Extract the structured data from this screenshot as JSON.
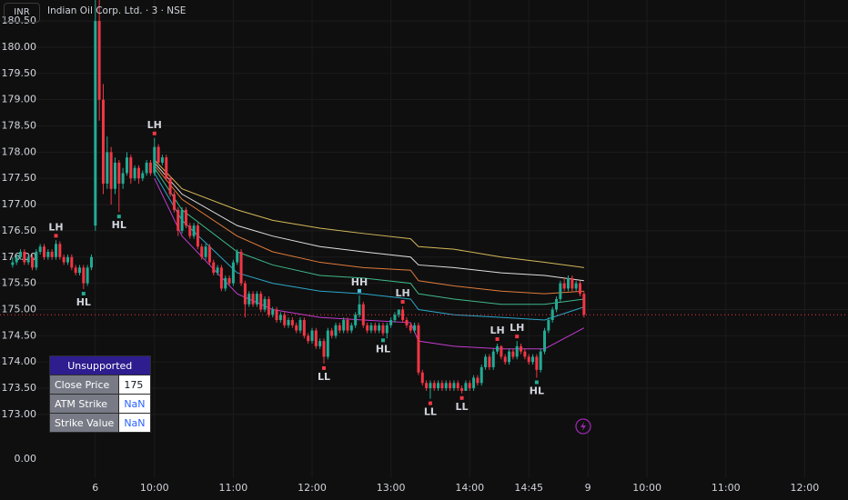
{
  "chart_data": {
    "type": "candlestick",
    "currency": "INR",
    "title": "Indian Oil Corp. Ltd. · 3 · NSE",
    "up_color": "#22ab94",
    "down_color": "#f23645",
    "grid": true,
    "xlim": [
      -24.2,
      191
    ],
    "ylim": [
      172.6,
      180.9
    ],
    "yticks": [
      {
        "value": 173,
        "label": "173.00"
      },
      {
        "value": 173.5,
        "label": "173.50"
      },
      {
        "value": 174,
        "label": "174.00"
      },
      {
        "value": 174.5,
        "label": "174.50"
      },
      {
        "value": 175,
        "label": "175.00"
      },
      {
        "value": 175.5,
        "label": "175.50"
      },
      {
        "value": 176,
        "label": "176.00"
      },
      {
        "value": 176.5,
        "label": "176.50"
      },
      {
        "value": 177,
        "label": "177.00"
      },
      {
        "value": 177.5,
        "label": "177.50"
      },
      {
        "value": 178,
        "label": "178.00"
      },
      {
        "value": 178.5,
        "label": "178.50"
      },
      {
        "value": 179,
        "label": "179.00"
      },
      {
        "value": 179.5,
        "label": "179.50"
      },
      {
        "value": 180,
        "label": "180.00"
      },
      {
        "value": 180.5,
        "label": "180.50"
      }
    ],
    "xticks": [
      {
        "value": 0,
        "label": "6"
      },
      {
        "value": 15,
        "label": "10:00"
      },
      {
        "value": 35,
        "label": "11:00"
      },
      {
        "value": 55,
        "label": "12:00"
      },
      {
        "value": 75,
        "label": "13:00"
      },
      {
        "value": 95,
        "label": "14:00"
      },
      {
        "value": 110,
        "label": "14:45"
      },
      {
        "value": 125,
        "label": "9"
      },
      {
        "value": 140,
        "label": "10:00"
      },
      {
        "value": 160,
        "label": "11:00"
      },
      {
        "value": 180,
        "label": "12:00"
      }
    ],
    "x": [
      -21,
      -20,
      -19,
      -18,
      -17,
      -16,
      -15,
      -14,
      -13,
      -12,
      -11,
      -10,
      -9,
      -8,
      -7,
      -6,
      -5,
      -4,
      -3,
      -2,
      -1,
      0,
      1,
      2,
      3,
      4,
      5,
      6,
      7,
      8,
      9,
      10,
      11,
      12,
      13,
      14,
      15,
      16,
      17,
      18,
      19,
      20,
      21,
      22,
      23,
      24,
      25,
      26,
      27,
      28,
      29,
      30,
      31,
      32,
      33,
      34,
      35,
      36,
      37,
      38,
      39,
      40,
      41,
      42,
      43,
      44,
      45,
      46,
      47,
      48,
      49,
      50,
      51,
      52,
      53,
      54,
      55,
      56,
      57,
      58,
      59,
      60,
      61,
      62,
      63,
      64,
      65,
      66,
      67,
      68,
      69,
      70,
      71,
      72,
      73,
      74,
      75,
      76,
      77,
      78,
      79,
      80,
      81,
      82,
      83,
      84,
      85,
      86,
      87,
      88,
      89,
      90,
      91,
      92,
      93,
      94,
      95,
      96,
      97,
      98,
      99,
      100,
      101,
      102,
      103,
      104,
      105,
      106,
      107,
      108,
      109,
      110,
      111,
      112,
      113,
      114,
      115,
      116,
      117,
      118,
      119,
      120,
      121,
      122,
      123,
      124
    ],
    "ohlc": [
      [
        175.85,
        176.0,
        175.8,
        175.9
      ],
      [
        175.9,
        176.05,
        175.85,
        176.0
      ],
      [
        176.0,
        176.15,
        175.95,
        176.1
      ],
      [
        176.1,
        176.15,
        175.85,
        175.9
      ],
      [
        175.9,
        176.05,
        175.85,
        176.0
      ],
      [
        176.0,
        176.05,
        175.75,
        175.8
      ],
      [
        175.8,
        176.15,
        175.75,
        176.1
      ],
      [
        176.1,
        176.25,
        176.05,
        176.2
      ],
      [
        176.2,
        176.25,
        175.95,
        176.0
      ],
      [
        176.0,
        176.15,
        175.95,
        176.1
      ],
      [
        176.1,
        176.15,
        175.95,
        176.0
      ],
      [
        176.0,
        176.32,
        175.95,
        176.25
      ],
      [
        176.25,
        176.3,
        175.95,
        176.0
      ],
      [
        176.0,
        176.05,
        175.85,
        175.9
      ],
      [
        175.9,
        176.05,
        175.85,
        176.0
      ],
      [
        176.0,
        176.05,
        175.75,
        175.8
      ],
      [
        175.8,
        175.85,
        175.65,
        175.7
      ],
      [
        175.7,
        175.85,
        175.65,
        175.8
      ],
      [
        175.8,
        175.85,
        175.39,
        175.5
      ],
      [
        175.5,
        175.85,
        175.45,
        175.8
      ],
      [
        175.8,
        176.05,
        175.75,
        176.0
      ],
      [
        176.6,
        180.9,
        176.5,
        180.5
      ],
      [
        180.5,
        180.9,
        178.6,
        179.0
      ],
      [
        179.0,
        179.3,
        177.2,
        177.4
      ],
      [
        177.4,
        178.3,
        177.3,
        178.0
      ],
      [
        178.0,
        178.1,
        177.0,
        177.3
      ],
      [
        177.3,
        177.9,
        177.2,
        177.8
      ],
      [
        177.8,
        177.85,
        176.86,
        177.4
      ],
      [
        177.4,
        177.7,
        177.3,
        177.6
      ],
      [
        177.6,
        178.0,
        177.55,
        177.9
      ],
      [
        177.9,
        177.95,
        177.4,
        177.5
      ],
      [
        177.5,
        177.75,
        177.45,
        177.7
      ],
      [
        177.7,
        177.75,
        177.4,
        177.5
      ],
      [
        177.5,
        177.65,
        177.45,
        177.6
      ],
      [
        177.6,
        177.85,
        177.55,
        177.8
      ],
      [
        177.8,
        177.85,
        177.55,
        177.6
      ],
      [
        177.6,
        178.27,
        177.55,
        178.1
      ],
      [
        178.1,
        178.15,
        177.75,
        177.8
      ],
      [
        177.8,
        177.95,
        177.75,
        177.9
      ],
      [
        177.9,
        177.95,
        177.45,
        177.5
      ],
      [
        177.5,
        177.55,
        177.15,
        177.2
      ],
      [
        177.2,
        177.25,
        176.85,
        176.9
      ],
      [
        176.9,
        176.95,
        176.4,
        176.5
      ],
      [
        176.5,
        176.95,
        176.45,
        176.9
      ],
      [
        176.9,
        176.95,
        176.55,
        176.6
      ],
      [
        176.6,
        176.65,
        176.35,
        176.4
      ],
      [
        176.4,
        176.65,
        176.35,
        176.6
      ],
      [
        176.6,
        176.65,
        176.15,
        176.2
      ],
      [
        176.2,
        176.25,
        175.95,
        176.0
      ],
      [
        176.0,
        176.25,
        175.95,
        176.2
      ],
      [
        176.2,
        176.25,
        175.85,
        175.9
      ],
      [
        175.9,
        175.95,
        175.65,
        175.7
      ],
      [
        175.7,
        175.85,
        175.65,
        175.8
      ],
      [
        175.8,
        175.85,
        175.35,
        175.4
      ],
      [
        175.4,
        175.65,
        175.35,
        175.6
      ],
      [
        175.6,
        175.65,
        175.45,
        175.5
      ],
      [
        175.5,
        175.95,
        175.45,
        175.9
      ],
      [
        175.9,
        176.15,
        175.85,
        176.1
      ],
      [
        176.1,
        176.15,
        175.45,
        175.5
      ],
      [
        175.5,
        175.55,
        174.85,
        175.1
      ],
      [
        175.1,
        175.35,
        175.05,
        175.3
      ],
      [
        175.3,
        175.35,
        175.05,
        175.1
      ],
      [
        175.1,
        175.35,
        175.05,
        175.3
      ],
      [
        175.3,
        175.35,
        174.95,
        175.0
      ],
      [
        175.0,
        175.25,
        174.95,
        175.2
      ],
      [
        175.2,
        175.25,
        174.85,
        174.9
      ],
      [
        174.9,
        175.05,
        174.85,
        175.0
      ],
      [
        175.0,
        175.05,
        174.75,
        174.8
      ],
      [
        174.8,
        174.95,
        174.75,
        174.9
      ],
      [
        174.9,
        174.95,
        174.65,
        174.7
      ],
      [
        174.7,
        174.85,
        174.65,
        174.8
      ],
      [
        174.8,
        174.85,
        174.65,
        174.7
      ],
      [
        174.7,
        174.75,
        174.55,
        174.6
      ],
      [
        174.6,
        174.85,
        174.55,
        174.8
      ],
      [
        174.8,
        174.85,
        174.45,
        174.5
      ],
      [
        174.5,
        174.55,
        174.35,
        174.4
      ],
      [
        174.4,
        174.65,
        174.35,
        174.6
      ],
      [
        174.6,
        174.65,
        174.25,
        174.3
      ],
      [
        174.3,
        174.45,
        174.25,
        174.4
      ],
      [
        174.4,
        174.45,
        173.97,
        174.1
      ],
      [
        174.1,
        174.65,
        174.05,
        174.6
      ],
      [
        174.6,
        174.65,
        174.45,
        174.5
      ],
      [
        174.5,
        174.75,
        174.45,
        174.7
      ],
      [
        174.7,
        174.75,
        174.55,
        174.6
      ],
      [
        174.6,
        174.85,
        174.55,
        174.8
      ],
      [
        174.8,
        174.85,
        174.55,
        174.6
      ],
      [
        174.6,
        174.75,
        174.55,
        174.7
      ],
      [
        174.7,
        174.95,
        174.65,
        174.9
      ],
      [
        174.9,
        175.27,
        174.85,
        175.1
      ],
      [
        175.1,
        175.15,
        174.65,
        174.7
      ],
      [
        174.7,
        174.75,
        174.55,
        174.6
      ],
      [
        174.6,
        174.75,
        174.55,
        174.7
      ],
      [
        174.7,
        174.75,
        174.55,
        174.6
      ],
      [
        174.6,
        174.75,
        174.55,
        174.7
      ],
      [
        174.7,
        174.75,
        174.5,
        174.55
      ],
      [
        174.55,
        174.75,
        174.45,
        174.7
      ],
      [
        174.7,
        174.85,
        174.65,
        174.8
      ],
      [
        174.8,
        174.95,
        174.75,
        174.9
      ],
      [
        174.9,
        175.0,
        174.85,
        175.0
      ],
      [
        175.0,
        175.06,
        174.75,
        174.8
      ],
      [
        174.8,
        174.85,
        174.65,
        174.7
      ],
      [
        174.7,
        174.75,
        174.55,
        174.6
      ],
      [
        174.6,
        174.75,
        174.55,
        174.7
      ],
      [
        174.7,
        174.75,
        173.75,
        173.8
      ],
      [
        173.8,
        173.85,
        173.55,
        173.6
      ],
      [
        173.6,
        173.65,
        173.45,
        173.5
      ],
      [
        173.5,
        173.65,
        173.3,
        173.6
      ],
      [
        173.6,
        173.65,
        173.45,
        173.5
      ],
      [
        173.5,
        173.65,
        173.45,
        173.6
      ],
      [
        173.6,
        173.65,
        173.45,
        173.5
      ],
      [
        173.5,
        173.65,
        173.45,
        173.6
      ],
      [
        173.6,
        173.65,
        173.45,
        173.5
      ],
      [
        173.5,
        173.65,
        173.45,
        173.6
      ],
      [
        173.6,
        173.65,
        173.45,
        173.5
      ],
      [
        173.5,
        173.55,
        173.4,
        173.45
      ],
      [
        173.45,
        173.65,
        173.45,
        173.6
      ],
      [
        173.6,
        173.65,
        173.45,
        173.5
      ],
      [
        173.5,
        173.75,
        173.45,
        173.7
      ],
      [
        173.7,
        173.75,
        173.55,
        173.6
      ],
      [
        173.6,
        173.95,
        173.55,
        173.9
      ],
      [
        173.9,
        174.15,
        173.85,
        174.1
      ],
      [
        174.1,
        174.15,
        173.85,
        173.9
      ],
      [
        173.9,
        174.25,
        173.85,
        174.2
      ],
      [
        174.2,
        174.35,
        174.15,
        174.3
      ],
      [
        174.3,
        174.32,
        174.05,
        174.1
      ],
      [
        174.1,
        174.15,
        173.95,
        174.0
      ],
      [
        174.0,
        174.25,
        173.95,
        174.2
      ],
      [
        174.2,
        174.25,
        174.05,
        174.1
      ],
      [
        174.1,
        174.4,
        174.05,
        174.3
      ],
      [
        174.3,
        174.35,
        174.15,
        174.2
      ],
      [
        174.2,
        174.25,
        174.05,
        174.1
      ],
      [
        174.1,
        174.15,
        173.95,
        174.0
      ],
      [
        174.0,
        174.15,
        173.95,
        174.1
      ],
      [
        174.1,
        174.15,
        173.7,
        173.85
      ],
      [
        173.85,
        174.25,
        173.8,
        174.2
      ],
      [
        174.2,
        174.65,
        174.15,
        174.6
      ],
      [
        174.6,
        174.85,
        174.55,
        174.8
      ],
      [
        174.8,
        175.05,
        174.75,
        175.0
      ],
      [
        175.0,
        175.25,
        174.95,
        175.2
      ],
      [
        175.2,
        175.55,
        175.15,
        175.5
      ],
      [
        175.5,
        175.6,
        175.35,
        175.4
      ],
      [
        175.4,
        175.65,
        175.35,
        175.6
      ],
      [
        175.6,
        175.65,
        175.35,
        175.4
      ],
      [
        175.4,
        175.55,
        175.35,
        175.5
      ],
      [
        175.5,
        175.55,
        175.25,
        175.3
      ],
      [
        175.3,
        175.35,
        174.85,
        174.9
      ]
    ],
    "series": [
      {
        "color": "#d4b85a",
        "x": [
          15,
          22,
          36,
          45,
          57,
          68,
          80,
          82,
          91,
          103,
          114,
          124
        ],
        "values": [
          177.85,
          177.3,
          176.9,
          176.7,
          176.55,
          176.45,
          176.35,
          176.2,
          176.15,
          176.0,
          175.9,
          175.8
        ]
      },
      {
        "color": "#e0e0e0",
        "x": [
          15,
          22,
          36,
          45,
          57,
          68,
          80,
          82,
          91,
          103,
          114,
          124
        ],
        "values": [
          177.8,
          177.2,
          176.6,
          176.4,
          176.2,
          176.1,
          176.0,
          175.85,
          175.8,
          175.7,
          175.65,
          175.55
        ]
      },
      {
        "color": "#e07b3c",
        "x": [
          15,
          22,
          36,
          45,
          57,
          68,
          80,
          82,
          91,
          103,
          114,
          124
        ],
        "values": [
          177.75,
          177.1,
          176.4,
          176.1,
          175.9,
          175.8,
          175.75,
          175.55,
          175.45,
          175.35,
          175.3,
          175.35
        ]
      },
      {
        "color": "#3fb88a",
        "x": [
          15,
          22,
          36,
          45,
          57,
          68,
          80,
          82,
          91,
          103,
          114,
          124
        ],
        "values": [
          177.7,
          176.9,
          176.1,
          175.85,
          175.65,
          175.6,
          175.5,
          175.3,
          175.2,
          175.1,
          175.1,
          175.2
        ]
      },
      {
        "color": "#2aa6c9",
        "x": [
          15,
          22,
          36,
          45,
          57,
          68,
          80,
          82,
          91,
          103,
          114,
          124
        ],
        "values": [
          177.6,
          176.7,
          175.7,
          175.5,
          175.35,
          175.3,
          175.2,
          175.0,
          174.9,
          174.85,
          174.8,
          175.05
        ]
      },
      {
        "color": "#c23ccf",
        "x": [
          15,
          22,
          36,
          45,
          57,
          68,
          80,
          82,
          91,
          103,
          114,
          124
        ],
        "values": [
          177.5,
          176.4,
          175.3,
          175.0,
          174.85,
          174.8,
          174.75,
          174.4,
          174.3,
          174.25,
          174.25,
          174.65
        ]
      }
    ],
    "annotations": [
      {
        "text": "LH",
        "x": -10,
        "y": 176.32,
        "color": "#f23645"
      },
      {
        "text": "HL",
        "x": -3,
        "y": 175.39,
        "color": "#22ab94"
      },
      {
        "text": "HL",
        "x": 6,
        "y": 176.86,
        "color": "#22ab94"
      },
      {
        "text": "LH",
        "x": 15,
        "y": 178.27,
        "color": "#f23645"
      },
      {
        "text": "LL",
        "x": 58,
        "y": 173.97,
        "color": "#f23645"
      },
      {
        "text": "HH",
        "x": 67,
        "y": 175.27,
        "color": "#4fc3d9"
      },
      {
        "text": "HL",
        "x": 73,
        "y": 174.5,
        "color": "#22ab94"
      },
      {
        "text": "LH",
        "x": 78,
        "y": 175.06,
        "color": "#f23645"
      },
      {
        "text": "LL",
        "x": 85,
        "y": 173.3,
        "color": "#f23645"
      },
      {
        "text": "LL",
        "x": 93,
        "y": 173.4,
        "color": "#f23645"
      },
      {
        "text": "LH",
        "x": 102,
        "y": 174.35,
        "color": "#f23645"
      },
      {
        "text": "LH",
        "x": 107,
        "y": 174.4,
        "color": "#f23645"
      },
      {
        "text": "HL",
        "x": 112,
        "y": 173.7,
        "color": "#22ab94"
      }
    ],
    "last_price": 174.9,
    "indicator_axis_label": "0.00"
  },
  "table": {
    "title": "Unsupported",
    "rows": [
      [
        "Close Price",
        "175"
      ],
      [
        "ATM Strike",
        "NaN"
      ],
      [
        "Strike Value",
        "NaN"
      ]
    ]
  }
}
